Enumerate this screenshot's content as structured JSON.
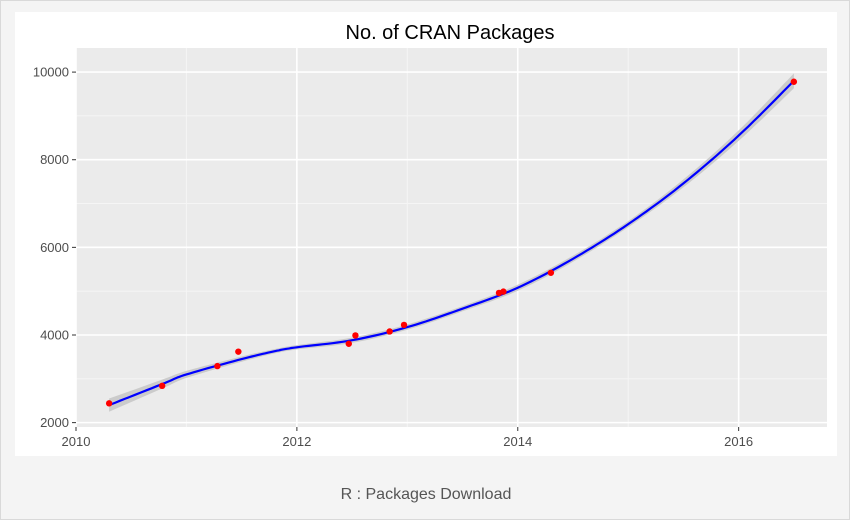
{
  "caption": "R : Packages Download",
  "colors": {
    "panel": "#ebebeb",
    "grid_major": "#ffffff",
    "grid_minor": "#f5f5f5",
    "line": "#0000ff",
    "band": "#c8c8c8",
    "points": "#ff0000"
  },
  "chart_data": {
    "type": "scatter",
    "title": "No. of CRAN Packages",
    "xlabel": "",
    "ylabel": "",
    "xlim": [
      2010.0,
      2016.8
    ],
    "ylim": [
      1900,
      10550
    ],
    "xticks": [
      2010,
      2012,
      2014,
      2016
    ],
    "xtick_labels": [
      "2010",
      "2012",
      "2014",
      "2016"
    ],
    "yticks": [
      2000,
      4000,
      6000,
      8000,
      10000
    ],
    "ytick_labels": [
      "2000",
      "4000",
      "6000",
      "8000",
      "10000"
    ],
    "grid": true,
    "legend": "none",
    "points": {
      "x": [
        2010.3,
        2010.78,
        2011.28,
        2011.47,
        2012.47,
        2012.53,
        2012.84,
        2012.97,
        2013.83,
        2013.87,
        2014.3,
        2016.5
      ],
      "y": [
        2440,
        2840,
        3290,
        3620,
        3800,
        3990,
        4080,
        4230,
        4960,
        4990,
        5420,
        9780
      ]
    },
    "smooth": {
      "x": [
        2010.3,
        2010.8,
        2011.0,
        2011.5,
        2011.8,
        2012.0,
        2012.5,
        2013.0,
        2013.5,
        2014.0,
        2014.5,
        2015.0,
        2015.5,
        2016.0,
        2016.5
      ],
      "y": [
        2400,
        2900,
        3100,
        3450,
        3630,
        3720,
        3880,
        4180,
        4600,
        5080,
        5740,
        6530,
        7460,
        8550,
        9800
      ],
      "band_halfwidth": [
        150,
        100,
        80,
        60,
        50,
        50,
        60,
        60,
        60,
        70,
        70,
        70,
        90,
        120,
        170
      ]
    }
  }
}
